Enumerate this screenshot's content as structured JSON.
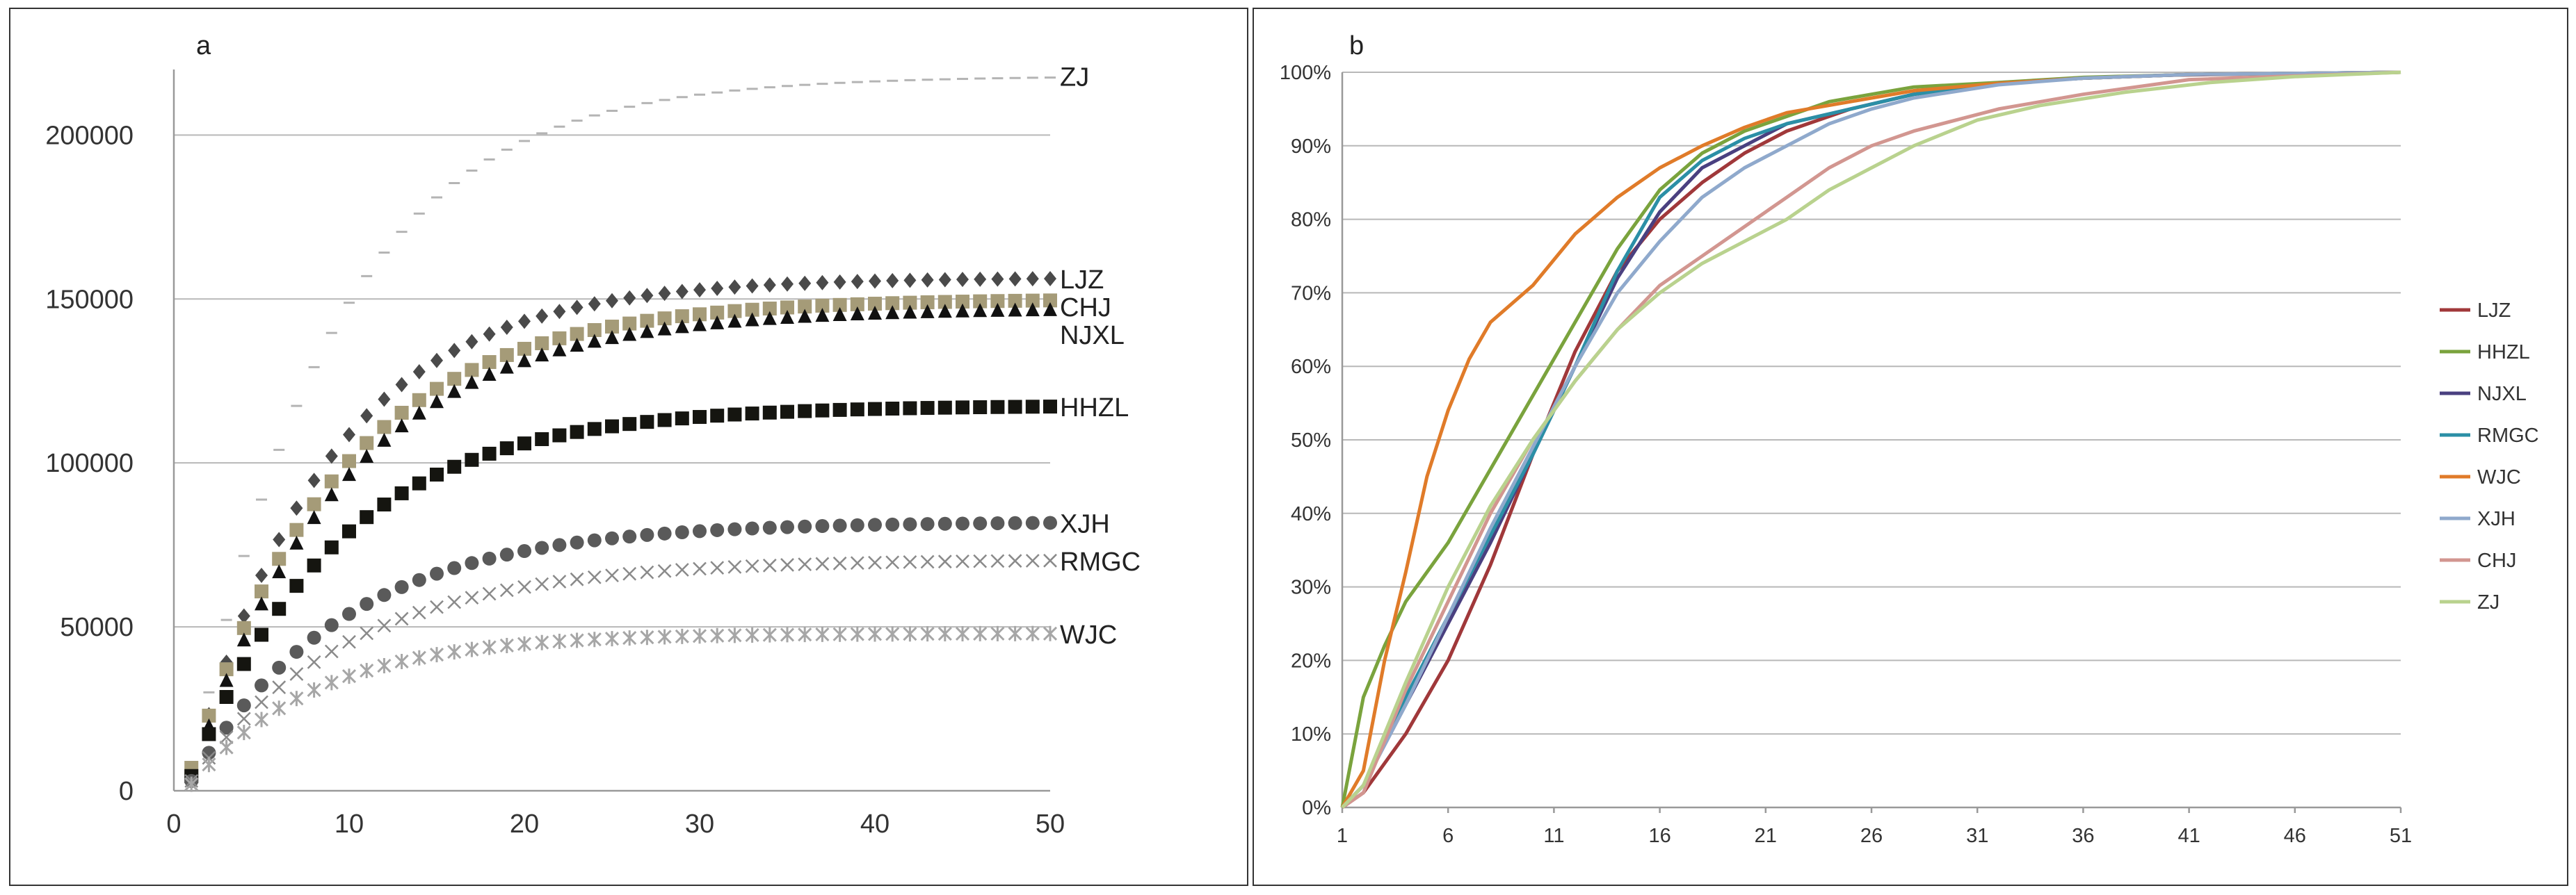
{
  "chart_data": [
    {
      "panel_label": "a",
      "type": "scatter",
      "xlim": [
        0,
        50
      ],
      "ylim": [
        0,
        220000
      ],
      "x_ticks": [
        0,
        10,
        20,
        30,
        40,
        50
      ],
      "y_ticks": [
        0,
        50000,
        100000,
        150000,
        200000
      ],
      "x_tick_labels": [
        "0",
        "10",
        "20",
        "30",
        "40",
        "50"
      ],
      "y_tick_labels": [
        "0",
        "50000",
        "100000",
        "150000",
        "200000"
      ],
      "grid": "horizontal",
      "series": [
        {
          "name": "ZJ",
          "marker": "dash",
          "color": "#b4b4b4",
          "final": 218000,
          "rate": 0.125,
          "offset": 5000
        },
        {
          "name": "LJZ",
          "marker": "diamond",
          "color": "#4a4a4a",
          "final": 156500,
          "rate": 0.128,
          "offset": 5000
        },
        {
          "name": "CHJ",
          "marker": "square",
          "color": "#a59b78",
          "final": 150000,
          "rate": 0.118,
          "offset": 7000
        },
        {
          "name": "NJXL",
          "marker": "triangle",
          "color": "#111111",
          "final": 147000,
          "rate": 0.115,
          "offset": 4000
        },
        {
          "name": "HHZL",
          "marker": "square",
          "color": "#151510",
          "final": 117500,
          "rate": 0.12,
          "offset": 4500
        },
        {
          "name": "XJH",
          "marker": "circle",
          "color": "#5a5a5a",
          "final": 82000,
          "rate": 0.115,
          "offset": 3000
        },
        {
          "name": "RMGC",
          "marker": "cross",
          "color": "#8a8a8a",
          "final": 70500,
          "rate": 0.11,
          "offset": 3000
        },
        {
          "name": "WJC",
          "marker": "star",
          "color": "#a6a6a6",
          "final": 48000,
          "rate": 0.14,
          "offset": 2000
        }
      ]
    },
    {
      "panel_label": "b",
      "type": "line",
      "xlim": [
        1,
        51
      ],
      "ylim": [
        0,
        100
      ],
      "x_tick_labels": [
        "1",
        "6",
        "11",
        "16",
        "21",
        "26",
        "31",
        "36",
        "41",
        "46",
        "51"
      ],
      "y_tick_labels": [
        "0%",
        "10%",
        "20%",
        "30%",
        "40%",
        "50%",
        "60%",
        "70%",
        "80%",
        "90%",
        "100%"
      ],
      "grid": "horizontal",
      "legend_position": "right",
      "series": [
        {
          "name": "LJZ",
          "color": "#a0383a",
          "x": [
            1,
            2,
            4,
            6,
            8,
            10,
            12,
            14,
            16,
            18,
            20,
            22,
            25,
            28,
            32,
            36,
            40,
            45,
            51
          ],
          "values": [
            0,
            2,
            10,
            20,
            33,
            48,
            62,
            73,
            80,
            85,
            89,
            92,
            95,
            97,
            98.5,
            99.2,
            99.6,
            99.8,
            100
          ]
        },
        {
          "name": "HHZL",
          "color": "#7aa33d",
          "x": [
            1,
            2,
            3,
            4,
            6,
            8,
            10,
            12,
            14,
            16,
            18,
            20,
            22,
            24,
            26,
            28,
            32,
            36,
            41,
            51
          ],
          "values": [
            0,
            15,
            22,
            28,
            36,
            46,
            56,
            66,
            76,
            84,
            89,
            92,
            94,
            96,
            97,
            98,
            98.6,
            99.3,
            99.7,
            100
          ]
        },
        {
          "name": "NJXL",
          "color": "#4a4080",
          "x": [
            1,
            2,
            4,
            6,
            8,
            10,
            12,
            14,
            16,
            18,
            20,
            22,
            25,
            28,
            32,
            36,
            41,
            51
          ],
          "values": [
            0,
            3,
            14,
            25,
            36,
            48,
            60,
            72,
            81,
            87,
            90,
            93,
            95,
            97,
            98.5,
            99.2,
            99.7,
            100
          ]
        },
        {
          "name": "RMGC",
          "color": "#2b8fa6",
          "x": [
            1,
            2,
            4,
            6,
            8,
            10,
            12,
            14,
            16,
            18,
            20,
            22,
            25,
            28,
            32,
            36,
            41,
            51
          ],
          "values": [
            0,
            3,
            15,
            26,
            37,
            48,
            60,
            73,
            83,
            88,
            91,
            93,
            95,
            97,
            98.5,
            99.2,
            99.7,
            100
          ]
        },
        {
          "name": "WJC",
          "color": "#e07b29",
          "x": [
            1,
            2,
            3,
            4,
            5,
            6,
            7,
            8,
            10,
            12,
            14,
            16,
            18,
            20,
            22,
            25,
            28,
            32,
            36,
            41,
            51
          ],
          "values": [
            0,
            5,
            20,
            32,
            45,
            54,
            61,
            66,
            71,
            78,
            83,
            87,
            90,
            92.5,
            94.5,
            96,
            97.5,
            98.5,
            99.2,
            99.7,
            100
          ]
        },
        {
          "name": "XJH",
          "color": "#8fa9cc",
          "x": [
            1,
            2,
            4,
            6,
            8,
            10,
            12,
            14,
            16,
            18,
            20,
            22,
            24,
            26,
            28,
            32,
            36,
            41,
            51
          ],
          "values": [
            0,
            3,
            14,
            26,
            38,
            49,
            60,
            70,
            77,
            83,
            87,
            90,
            93,
            95,
            96.5,
            98.3,
            99.2,
            99.7,
            100
          ]
        },
        {
          "name": "CHJ",
          "color": "#d29690",
          "x": [
            1,
            2,
            4,
            6,
            8,
            10,
            12,
            14,
            16,
            18,
            20,
            22,
            24,
            26,
            28,
            32,
            36,
            41,
            51
          ],
          "values": [
            0,
            2,
            16,
            28,
            40,
            50,
            58,
            65,
            71,
            75,
            79,
            83,
            87,
            90,
            92,
            95,
            97,
            99,
            100
          ]
        },
        {
          "name": "ZJ",
          "color": "#b9d28e",
          "x": [
            1,
            2,
            4,
            6,
            8,
            10,
            12,
            14,
            16,
            18,
            20,
            22,
            24,
            26,
            28,
            31,
            34,
            38,
            42,
            46,
            51
          ],
          "values": [
            0,
            3,
            17,
            30,
            41,
            50,
            58,
            65,
            70,
            74,
            77,
            80,
            84,
            87,
            90,
            93.5,
            95.5,
            97.3,
            98.6,
            99.4,
            100
          ]
        }
      ]
    }
  ]
}
